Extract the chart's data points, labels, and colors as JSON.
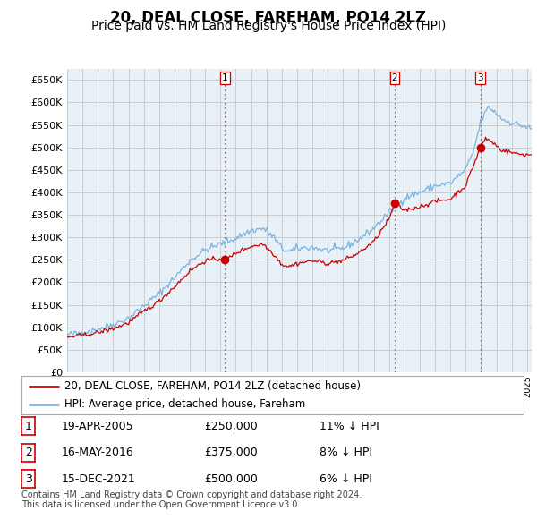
{
  "title": "20, DEAL CLOSE, FAREHAM, PO14 2LZ",
  "subtitle": "Price paid vs. HM Land Registry's House Price Index (HPI)",
  "ylabel_ticks": [
    "£0",
    "£50K",
    "£100K",
    "£150K",
    "£200K",
    "£250K",
    "£300K",
    "£350K",
    "£400K",
    "£450K",
    "£500K",
    "£550K",
    "£600K",
    "£650K"
  ],
  "ylim": [
    0,
    675000
  ],
  "xlim_start": 1995.0,
  "xlim_end": 2025.3,
  "hpi_color": "#7ab3e0",
  "price_color": "#cc0000",
  "sale_marker_color": "#cc0000",
  "grid_color": "#cccccc",
  "background_color": "#ffffff",
  "plot_bg_color": "#e8f0f8",
  "sales": [
    {
      "num": 1,
      "date_dec": 2005.29,
      "price": 250000,
      "label": "19-APR-2005",
      "pct": "11% ↓ HPI"
    },
    {
      "num": 2,
      "date_dec": 2016.37,
      "price": 375000,
      "label": "16-MAY-2016",
      "pct": "8% ↓ HPI"
    },
    {
      "num": 3,
      "date_dec": 2021.96,
      "price": 500000,
      "label": "15-DEC-2021",
      "pct": "6% ↓ HPI"
    }
  ],
  "legend_line1": "20, DEAL CLOSE, FAREHAM, PO14 2LZ (detached house)",
  "legend_line2": "HPI: Average price, detached house, Fareham",
  "footnote1": "Contains HM Land Registry data © Crown copyright and database right 2024.",
  "footnote2": "This data is licensed under the Open Government Licence v3.0.",
  "sale_vline_color": "#cc0000",
  "title_fontsize": 12,
  "subtitle_fontsize": 10
}
